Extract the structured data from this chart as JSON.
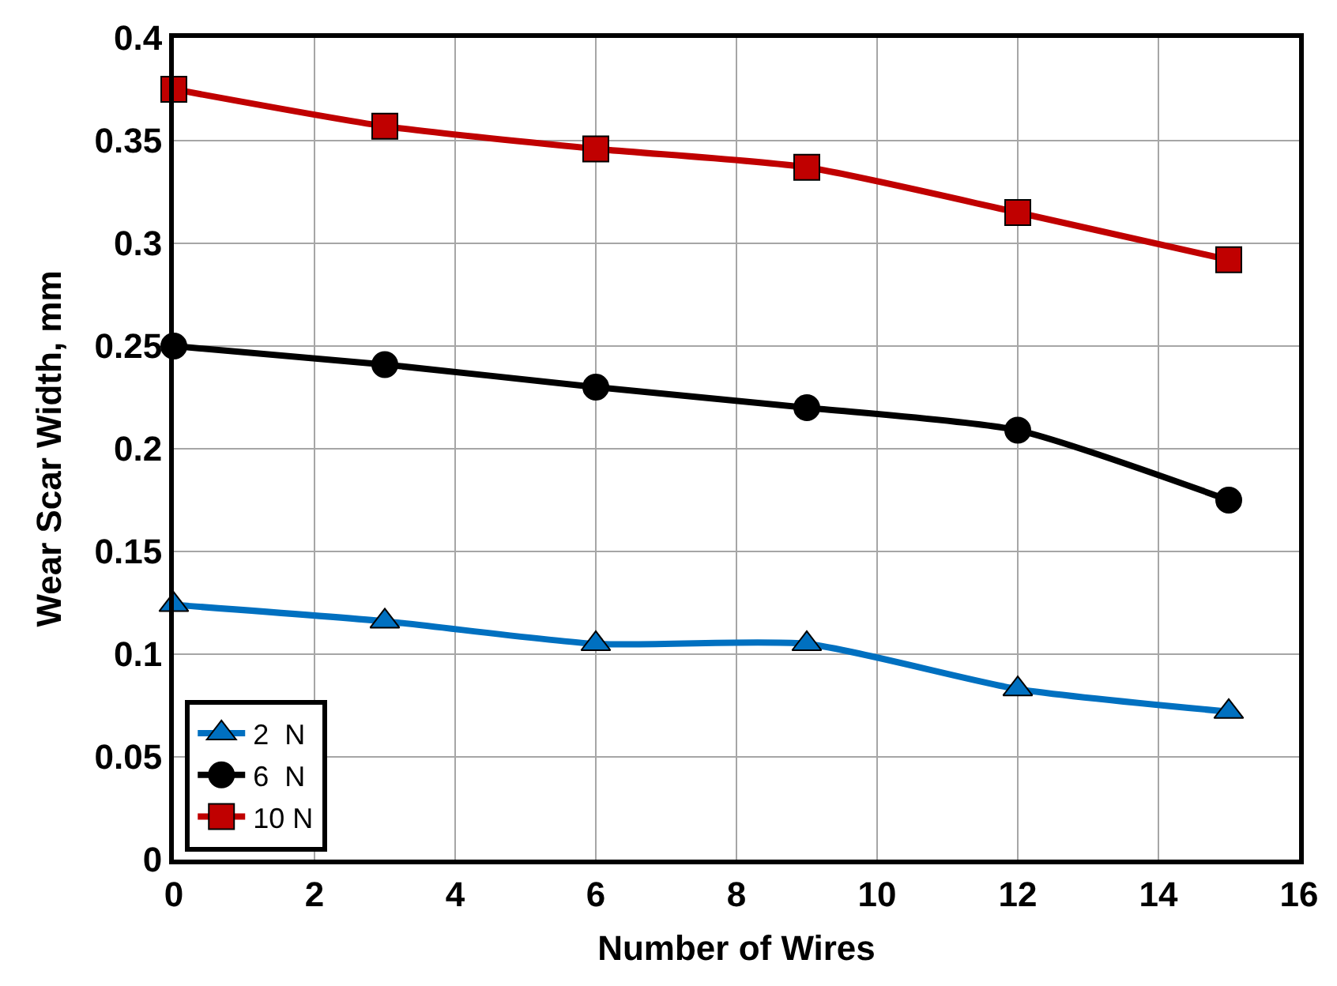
{
  "chart_data": {
    "type": "line",
    "xlabel": "Number of Wires",
    "ylabel": "Wear Scar Width, mm",
    "x": [
      0,
      3,
      6,
      9,
      12,
      15
    ],
    "series": [
      {
        "name": "2  N",
        "color": "#0070c0",
        "values": [
          0.124,
          0.116,
          0.105,
          0.105,
          0.083,
          0.072
        ],
        "marker": "triangle"
      },
      {
        "name": "6  N",
        "color": "#000000",
        "values": [
          0.25,
          0.241,
          0.23,
          0.22,
          0.209,
          0.175
        ],
        "marker": "circle"
      },
      {
        "name": "10 N",
        "color": "#c00000",
        "values": [
          0.375,
          0.357,
          0.346,
          0.337,
          0.315,
          0.292
        ],
        "marker": "square"
      }
    ],
    "xlim": [
      0,
      16
    ],
    "xticks": [
      0,
      2,
      4,
      6,
      8,
      10,
      12,
      14,
      16
    ],
    "ylim": [
      0,
      0.4
    ],
    "yticks": [
      0,
      0.05,
      0.1,
      0.15,
      0.2,
      0.25,
      0.3,
      0.35,
      0.4
    ],
    "grid": true,
    "legend": "bottom left",
    "line_style": "solid"
  }
}
